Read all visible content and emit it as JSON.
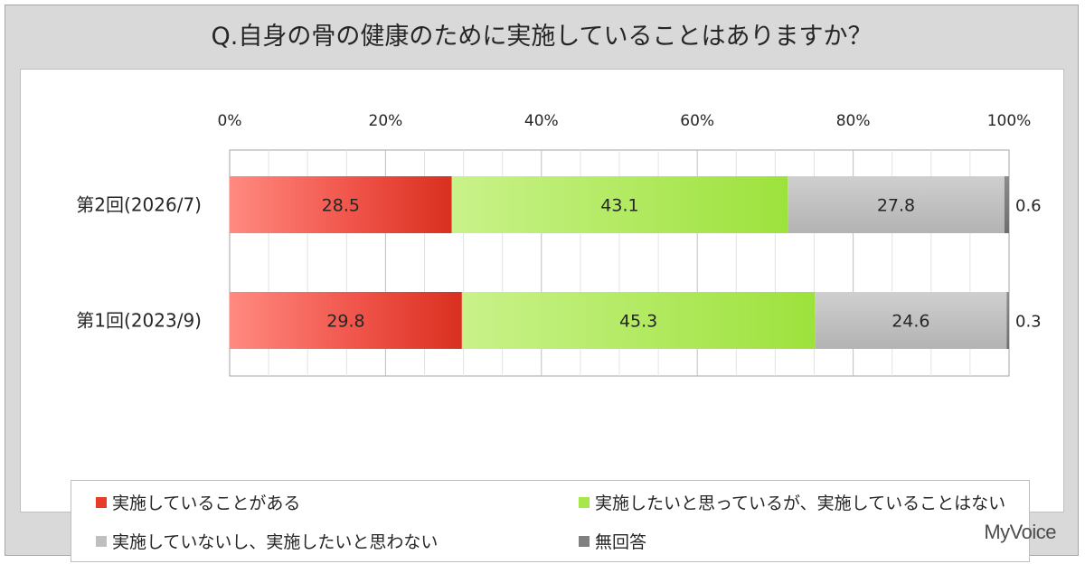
{
  "title": "Q.自身の骨の健康のために実施していることはありますか？",
  "brand": "MyVoice",
  "chart_data": {
    "type": "bar",
    "orientation": "horizontal",
    "stacked": true,
    "categories": [
      "第2回(2026/7)",
      "第1回(2023/9)"
    ],
    "series": [
      {
        "name": "実施していることがある",
        "values": [
          28.5,
          29.8
        ],
        "color": "#e83c2a"
      },
      {
        "name": "実施したいと思っているが、実施していることはない",
        "values": [
          43.1,
          45.3
        ],
        "color": "#a6e84a"
      },
      {
        "name": "実施していないし、実施したいと思わない",
        "values": [
          27.8,
          24.6
        ],
        "color": "#bfbfbf"
      },
      {
        "name": "無回答",
        "values": [
          0.6,
          0.3
        ],
        "color": "#808080"
      }
    ],
    "xlim": [
      0,
      100
    ],
    "x_ticks": [
      "0%",
      "20%",
      "40%",
      "60%",
      "80%",
      "100%"
    ],
    "grid": true,
    "legend_position": "bottom"
  }
}
